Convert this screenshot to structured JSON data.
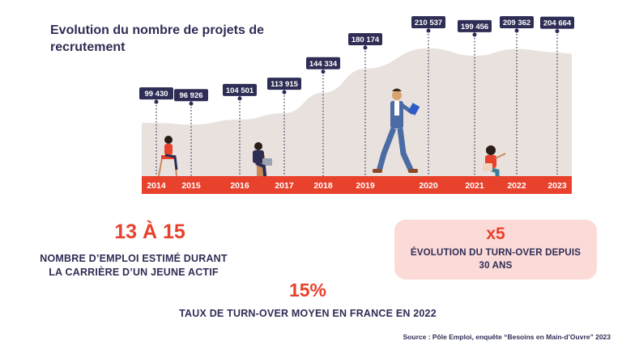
{
  "title": "Evolution du nombre de projets de recrutement",
  "chart_data": {
    "type": "area",
    "title": "Evolution du nombre de projets de recrutement",
    "categories": [
      "2014",
      "2015",
      "2016",
      "2017",
      "2018",
      "2019",
      "2020",
      "2021",
      "2022",
      "2023"
    ],
    "values": [
      99430,
      96926,
      104501,
      113915,
      144334,
      180174,
      210537,
      199456,
      209362,
      204664
    ],
    "value_labels": [
      "99 430",
      "96 926",
      "104 501",
      "113 915",
      "144 334",
      "180 174",
      "210 537",
      "199 456",
      "209 362",
      "204 664"
    ],
    "colors": {
      "area": "#e9e1dd",
      "axis_band": "#e8412c",
      "label_box": "#2e2d55",
      "label_text": "#ffffff",
      "year_text": "#ffffff"
    }
  },
  "stats": {
    "range_value": "13 À 15",
    "range_label_line1": "NOMBRE D’EMPLOI ESTIMÉ DURANT",
    "range_label_line2": "LA CARRIÈRE D’UN JEUNE ACTIF",
    "multiplier_value": "x5",
    "multiplier_label_line1": "ÉVOLUTION DU TURN-OVER DEPUIS",
    "multiplier_label_line2": "30 ANS",
    "rate_value": "15%",
    "rate_label": "TAUX DE TURN-OVER MOYEN EN FRANCE EN 2022"
  },
  "source": "Source : Pôle Emploi, enquête “Besoins en Main-d’Ouvre” 2023",
  "illustrations": [
    "person-sitting-chair-icon",
    "person-sitting-laptop-icon",
    "person-walking-tablet-icon",
    "person-sitting-gesturing-icon"
  ]
}
